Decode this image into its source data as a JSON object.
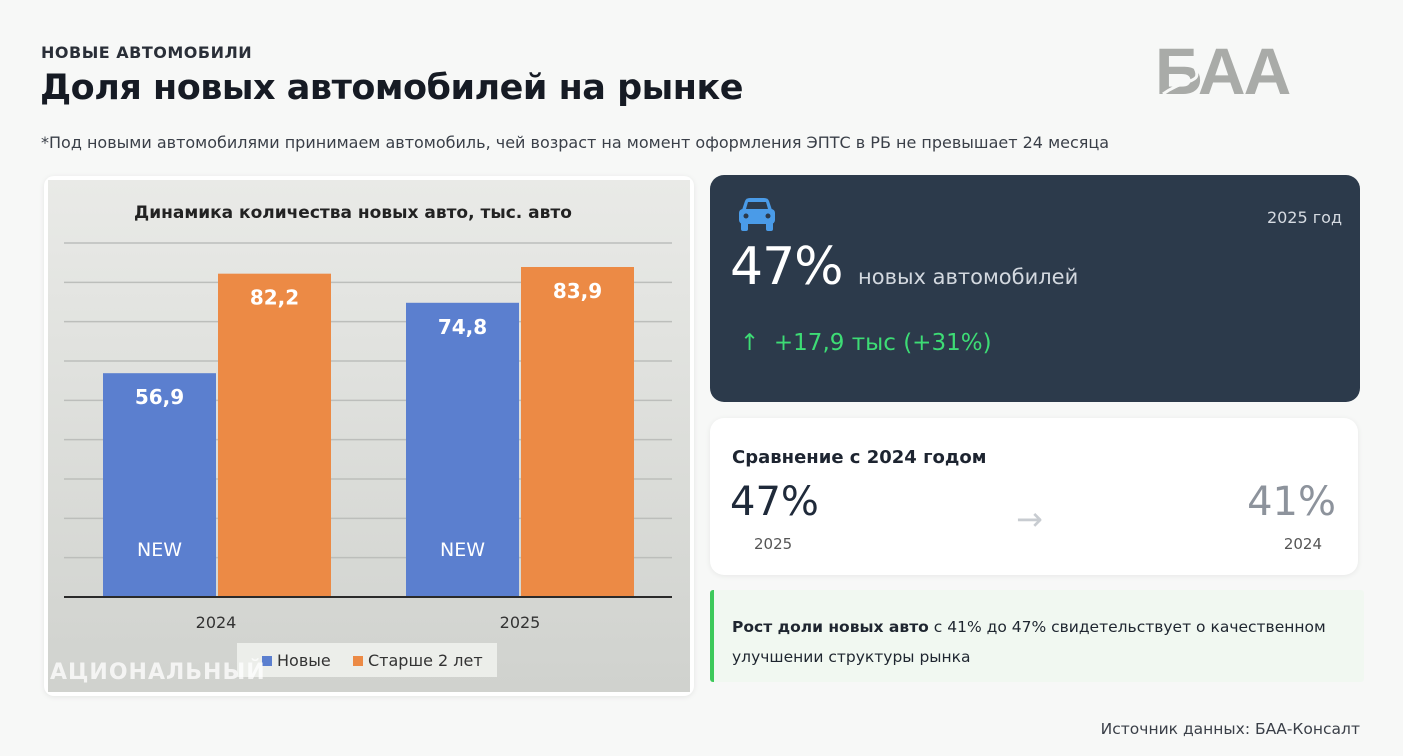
{
  "header": {
    "kicker": "НОВЫЕ АВТОМОБИЛИ",
    "title": "Доля новых автомобилей на рынке",
    "note": "*Под новыми автомобилями принимаем автомобиль, чей возраст на момент оформления ЭПТС в РБ не превышает 24 месяца",
    "logo_text": "БАА"
  },
  "chart_data": {
    "type": "bar",
    "title": "Динамика количества новых авто, тыс. авто",
    "categories": [
      "2024",
      "2025"
    ],
    "series": [
      {
        "name": "Новые",
        "values": [
          56.9,
          74.8
        ],
        "labels": [
          "56,9",
          "74,8"
        ],
        "inner_label": "NEW",
        "color": "#5b7fcf"
      },
      {
        "name": "Старше 2 лет",
        "values": [
          82.2,
          83.9
        ],
        "labels": [
          "82,2",
          "83,9"
        ],
        "color": "#ec8a45"
      }
    ],
    "xlabel": "",
    "ylabel": "",
    "ylim": [
      0,
      90
    ],
    "grid": true,
    "legend": "bottom"
  },
  "highlight": {
    "year": "2025 год",
    "value": "47%",
    "label": "новых автомобилей",
    "growth_arrow": "↑",
    "growth": "+17,9 тыс (+31%)",
    "icon": "car-icon",
    "accent": "#4a9be8",
    "growth_color": "#3ddc75"
  },
  "comparison": {
    "title": "Сравнение с 2024 годом",
    "current_value": "47%",
    "current_year": "2025",
    "arrow": "→",
    "previous_value": "41%",
    "previous_year": "2024"
  },
  "insight": {
    "bold": "Рост доли новых авто",
    "text": " с 41% до 47% свидетельствует о качественном улучшении структуры рынка"
  },
  "source": "Источник данных: БАА-Консалт",
  "watermark": "АЦИОНАЛЬНЫЙ"
}
